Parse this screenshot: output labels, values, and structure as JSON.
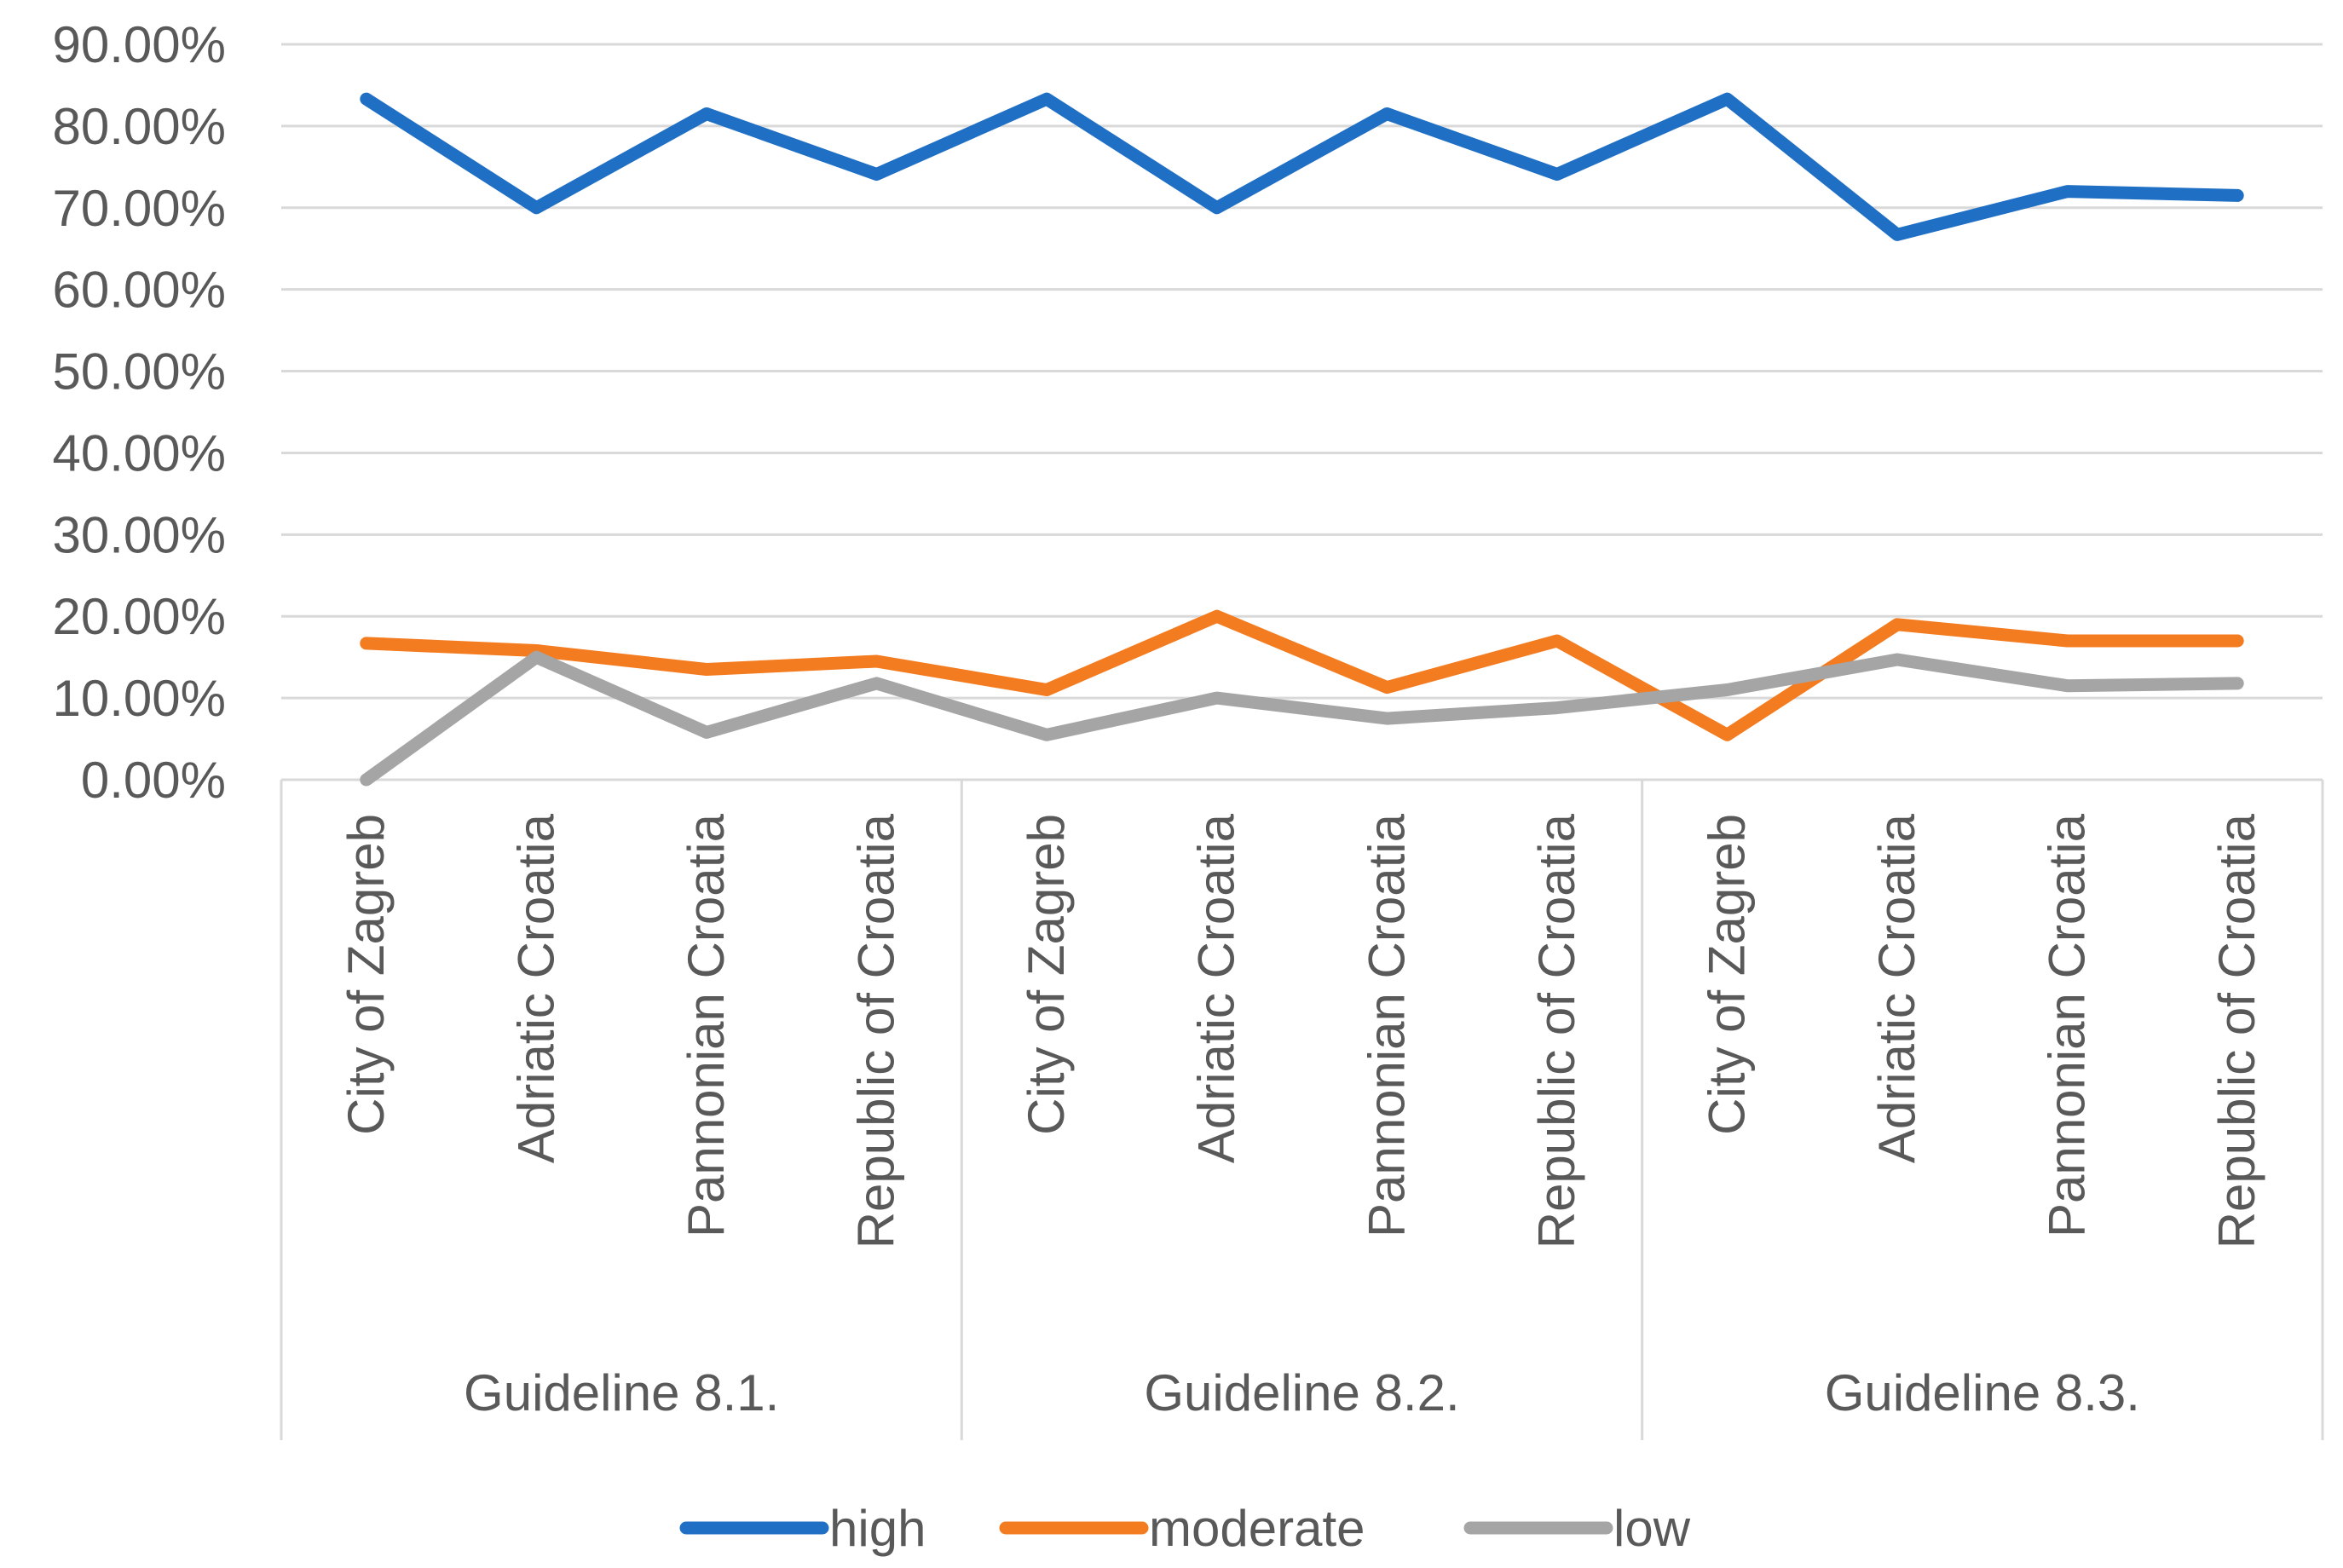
{
  "chart_data": {
    "type": "line",
    "title": "",
    "xlabel": "",
    "ylabel": "",
    "ylim": [
      0,
      0.9
    ],
    "y_ticks": [
      {
        "value": 0.0,
        "label": "0.00%"
      },
      {
        "value": 0.1,
        "label": "10.00%"
      },
      {
        "value": 0.2,
        "label": "20.00%"
      },
      {
        "value": 0.3,
        "label": "30.00%"
      },
      {
        "value": 0.4,
        "label": "40.00%"
      },
      {
        "value": 0.5,
        "label": "50.00%"
      },
      {
        "value": 0.6,
        "label": "60.00%"
      },
      {
        "value": 0.7,
        "label": "70.00%"
      },
      {
        "value": 0.8,
        "label": "80.00%"
      },
      {
        "value": 0.9,
        "label": "90.00%"
      }
    ],
    "grid": true,
    "groups": [
      {
        "label": "Guideline 8.1.",
        "categories": [
          "City of Zagreb",
          "Adriatic Croatia",
          "Pannonian Croatia",
          "Republic of Croatia"
        ]
      },
      {
        "label": "Guideline 8.2.",
        "categories": [
          "City of Zagreb",
          "Adriatic Croatia",
          "Pannonian Croatia",
          "Republic of Croatia"
        ]
      },
      {
        "label": "Guideline 8.3.",
        "categories": [
          "City of Zagreb",
          "Adriatic Croatia",
          "Pannonian Croatia",
          "Republic of Croatia"
        ]
      }
    ],
    "series": [
      {
        "name": "high",
        "color": "#1f6fc5",
        "values": [
          0.833,
          0.7,
          0.815,
          0.741,
          0.833,
          0.7,
          0.815,
          0.741,
          0.833,
          0.667,
          0.72,
          0.715
        ]
      },
      {
        "name": "moderate",
        "color": "#f47c20",
        "values": [
          0.167,
          0.158,
          0.135,
          0.145,
          0.11,
          0.2,
          0.113,
          0.17,
          0.055,
          0.19,
          0.17,
          0.17
        ]
      },
      {
        "name": "low",
        "color": "#a5a5a5",
        "values": [
          0.0,
          0.15,
          0.058,
          0.118,
          0.055,
          0.1,
          0.075,
          0.088,
          0.11,
          0.147,
          0.115,
          0.118
        ]
      }
    ],
    "legend_position": "bottom"
  }
}
